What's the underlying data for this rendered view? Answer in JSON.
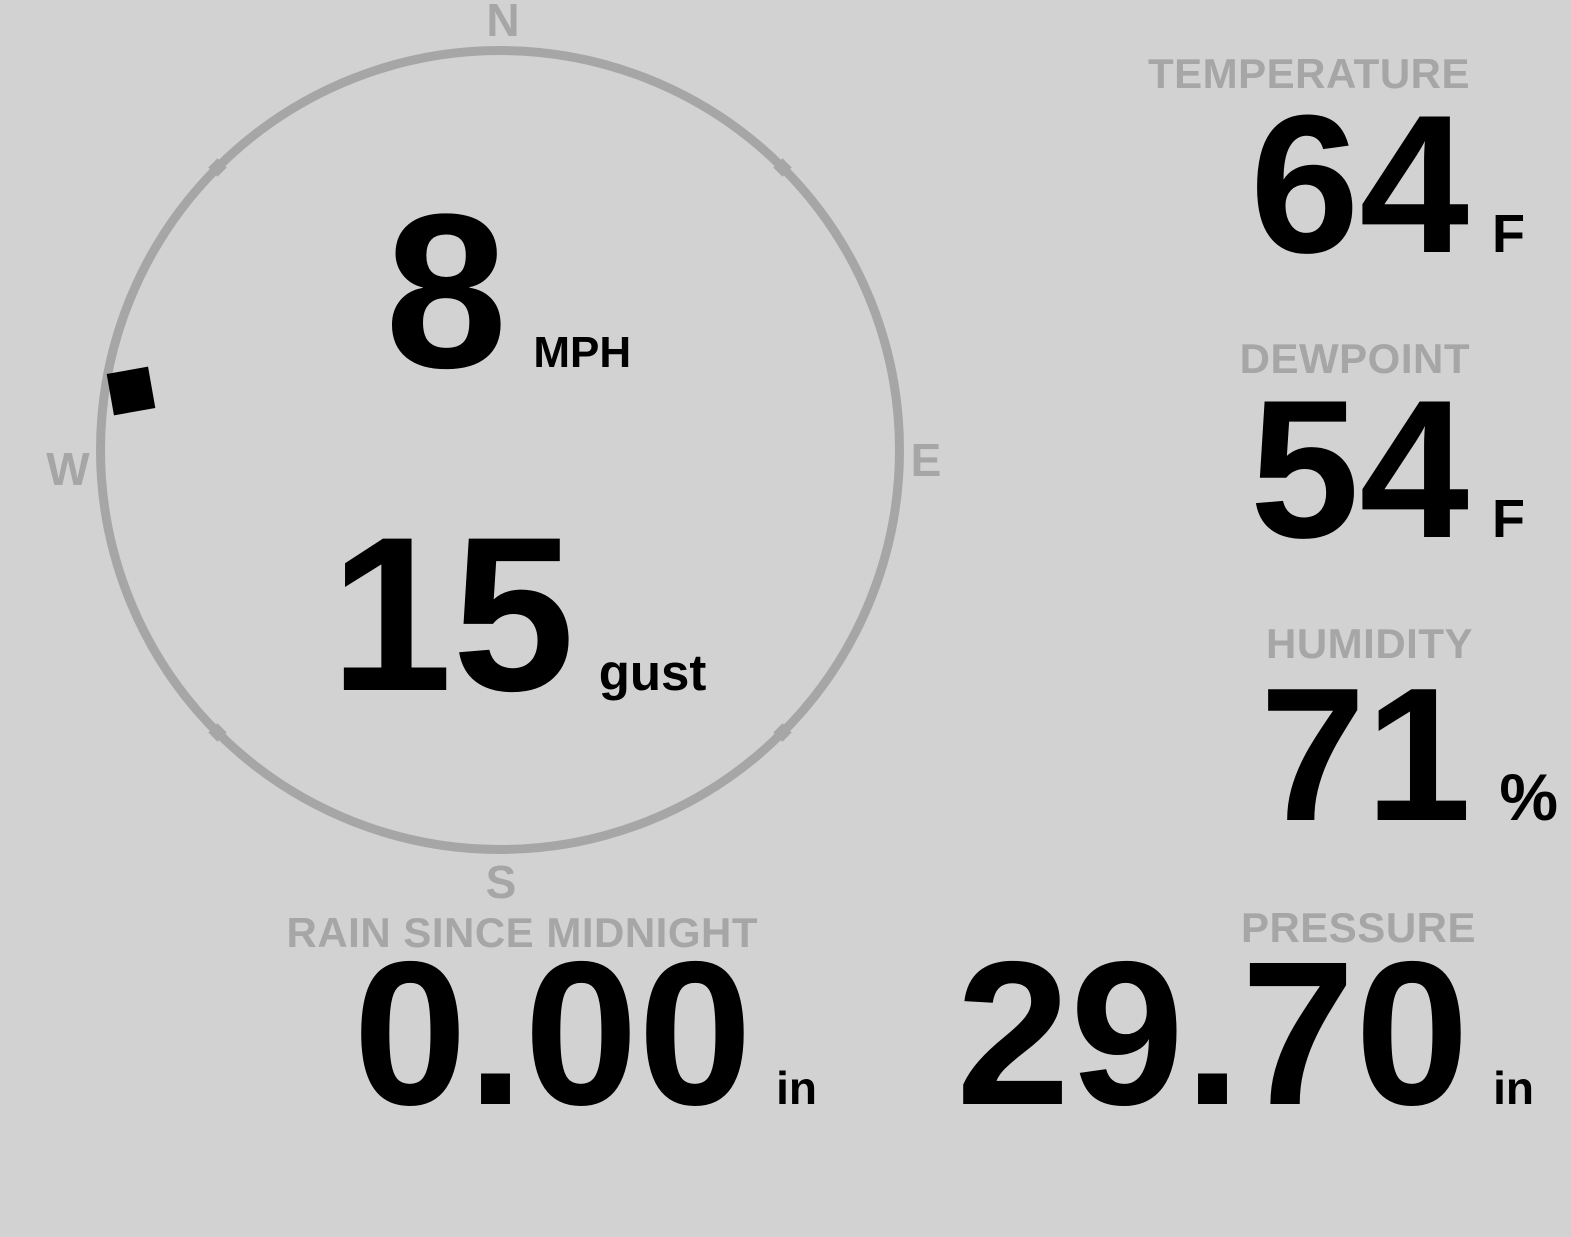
{
  "app": {
    "background_color": "#d2d2d2",
    "muted_gray": "#a6a6a6",
    "text_color": "#000000"
  },
  "wind": {
    "speed": "8",
    "speed_unit": "MPH",
    "gust": "15",
    "gust_unit": "gust",
    "direction_deg": 279,
    "compass": {
      "n": "N",
      "e": "E",
      "s": "S",
      "w": "W"
    }
  },
  "readouts": {
    "temperature": {
      "label": "TEMPERATURE",
      "value": "64",
      "unit": "F"
    },
    "dewpoint": {
      "label": "DEWPOINT",
      "value": "54",
      "unit": "F"
    },
    "humidity": {
      "label": "HUMIDITY",
      "value": "71",
      "unit": "%"
    },
    "rain": {
      "label": "RAIN SINCE MIDNIGHT",
      "value": "0.00",
      "unit": "in"
    },
    "pressure": {
      "label": "PRESSURE",
      "value": "29.70",
      "unit": "in"
    }
  }
}
